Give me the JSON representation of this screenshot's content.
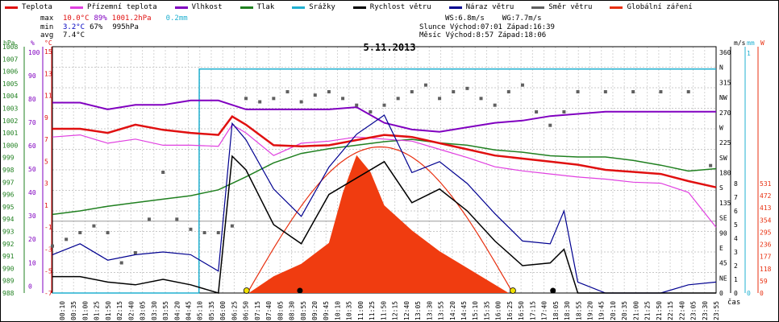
{
  "legend": [
    {
      "label": "Teplota",
      "color": "#e01010"
    },
    {
      "label": "Přízemní teplota",
      "color": "#e040e0"
    },
    {
      "label": "Vlhkost",
      "color": "#8000c0"
    },
    {
      "label": "Tlak",
      "color": "#208020"
    },
    {
      "label": "Srážky",
      "color": "#20b0d0"
    },
    {
      "label": "Rychlost větru",
      "color": "#000000"
    },
    {
      "label": "Náraz větru",
      "color": "#000090"
    },
    {
      "label": "Směr větru",
      "color": "#606060"
    },
    {
      "label": "Globální záření",
      "color": "#e83010"
    }
  ],
  "stats": {
    "max": {
      "label": "max",
      "temp": "10.0°C",
      "hum": "89%",
      "press": "1001.2hPa",
      "rain": "0.2mm"
    },
    "min": {
      "label": "min",
      "temp": "3.2°C",
      "hum": "67%",
      "press": "995hPa"
    },
    "avg": {
      "label": "avg",
      "temp": "7.4°C"
    }
  },
  "wind_stats": {
    "ws": "WS:6.8m/s",
    "wg": "WG:7.7m/s"
  },
  "sun": {
    "slunce": "Slunce Východ:07:01",
    "slunce_zapad": "Západ:16:39",
    "mesic": "Měsíc  Východ:8:57",
    "mesic_zapad": "Západ:18:06"
  },
  "chart_data": {
    "type": "line",
    "title": "5.11.2013",
    "xlabel": "čas",
    "x_ticks": [
      "00:10",
      "00:35",
      "01:00",
      "01:25",
      "01:50",
      "02:15",
      "02:40",
      "03:05",
      "03:30",
      "03:55",
      "04:20",
      "04:45",
      "05:10",
      "05:35",
      "06:00",
      "06:25",
      "06:50",
      "07:15",
      "07:40",
      "08:05",
      "08:30",
      "08:55",
      "09:20",
      "09:45",
      "10:10",
      "10:35",
      "11:00",
      "11:25",
      "11:50",
      "12:15",
      "12:40",
      "13:05",
      "13:30",
      "13:55",
      "14:20",
      "14:45",
      "15:10",
      "15:35",
      "16:00",
      "16:25",
      "16:50",
      "17:15",
      "17:40",
      "18:05",
      "18:30",
      "18:55",
      "19:20",
      "19:45",
      "20:10",
      "20:35",
      "21:00",
      "21:25",
      "21:50",
      "22:15",
      "22:40",
      "23:05",
      "23:30",
      "23:55"
    ],
    "axes": {
      "hpa": {
        "label": "hPa",
        "ticks": [
          "1008",
          "1007",
          "1006",
          "1005",
          "1004",
          "1003",
          "1002",
          "1001",
          "1000",
          "999",
          "998",
          "997",
          "996",
          "995",
          "994",
          "993",
          "992",
          "991",
          "990",
          "989",
          "988"
        ]
      },
      "pct": {
        "label": "%",
        "ticks": [
          "100",
          "90",
          "80",
          "70",
          "60",
          "50",
          "40",
          "30",
          "20",
          "10",
          "0"
        ]
      },
      "temp": {
        "label": "°C",
        "ticks": [
          "15",
          "13",
          "11",
          "9",
          "7",
          "5",
          "3",
          "1",
          "-1",
          "-3",
          "-5",
          "-7"
        ]
      },
      "dir": {
        "label": "m/s",
        "ticks": [
          "360",
          "N",
          "315",
          "NW",
          "270",
          "W",
          "225",
          "SW",
          "180",
          "S",
          "135",
          "SE",
          "90",
          "E",
          "45",
          "NE",
          "0"
        ]
      },
      "ms": {
        "ticks": [
          "8",
          "7",
          "6",
          "5",
          "4",
          "3",
          "2",
          "1",
          "0"
        ]
      },
      "mm": {
        "label": "mm",
        "ticks": [
          "1",
          "0"
        ]
      },
      "wm": {
        "label": "W",
        "ticks": [
          "531",
          "472",
          "413",
          "354",
          "295",
          "236",
          "177",
          "118",
          "59",
          "0"
        ]
      }
    },
    "series": [
      {
        "name": "Teplota",
        "unit": "°C",
        "x": [
          0,
          1,
          2,
          3,
          4,
          5,
          6,
          6.5,
          7,
          8,
          9,
          10,
          11,
          12,
          13,
          14,
          15,
          16,
          17,
          18,
          19,
          20,
          21,
          22,
          23,
          24
        ],
        "y": [
          9.0,
          9.0,
          8.6,
          9.4,
          8.9,
          8.6,
          8.4,
          10.2,
          9.4,
          7.4,
          7.3,
          7.4,
          7.9,
          8.4,
          8.2,
          7.6,
          7.0,
          6.4,
          6.1,
          5.8,
          5.5,
          5.0,
          4.8,
          4.6,
          3.9,
          3.3
        ]
      },
      {
        "name": "Přízemní teplota",
        "unit": "°C",
        "x": [
          0,
          1,
          2,
          3,
          4,
          5,
          6,
          6.5,
          7,
          8,
          9,
          10,
          11,
          12,
          13,
          14,
          15,
          16,
          17,
          18,
          19,
          20,
          21,
          22,
          23,
          24
        ],
        "y": [
          8.2,
          8.4,
          7.6,
          8.0,
          7.4,
          7.4,
          7.3,
          9.4,
          8.6,
          6.4,
          7.6,
          7.8,
          8.2,
          8.0,
          7.8,
          7.0,
          6.2,
          5.3,
          4.9,
          4.6,
          4.3,
          4.1,
          3.8,
          3.7,
          2.8,
          -0.6
        ]
      },
      {
        "name": "Vlhkost",
        "unit": "%",
        "x": [
          0,
          1,
          2,
          3,
          4,
          5,
          6,
          7,
          8,
          9,
          10,
          11,
          12,
          13,
          14,
          15,
          16,
          17,
          18,
          19,
          20,
          21,
          22,
          23,
          24
        ],
        "y": [
          85,
          85,
          82,
          84,
          84,
          86,
          86,
          82,
          82,
          82,
          82,
          83,
          76,
          73,
          72,
          74,
          76,
          77,
          79,
          80,
          81,
          81,
          81,
          81,
          81
        ]
      },
      {
        "name": "Tlak",
        "unit": "hPa",
        "x": [
          0,
          1,
          2,
          3,
          4,
          5,
          6,
          7,
          8,
          9,
          10,
          11,
          12,
          13,
          14,
          15,
          16,
          17,
          18,
          19,
          20,
          21,
          22,
          23,
          24
        ],
        "y": [
          994.7,
          995.0,
          995.4,
          995.7,
          996.0,
          996.3,
          996.8,
          997.9,
          999.1,
          999.9,
          1000.3,
          1000.6,
          1000.9,
          1001.1,
          1000.8,
          1000.6,
          1000.2,
          1000.0,
          999.7,
          999.6,
          999.6,
          999.3,
          998.9,
          998.4,
          998.6
        ]
      },
      {
        "name": "Srážky",
        "unit": "mm",
        "x": [
          0,
          5.3,
          5.31,
          24
        ],
        "y": [
          0,
          0,
          0.2,
          0.2
        ]
      },
      {
        "name": "Rychlost větru",
        "unit": "m/s",
        "x": [
          0,
          1,
          2,
          3,
          4,
          5,
          6,
          6.5,
          7,
          8,
          9,
          10,
          11,
          12,
          13,
          14,
          15,
          16,
          17,
          18,
          18.5,
          19,
          20,
          21,
          22,
          23,
          24
        ],
        "y": [
          0.6,
          0.6,
          0.4,
          0.3,
          0.5,
          0.3,
          0,
          5.0,
          4.5,
          2.5,
          1.8,
          3.6,
          4.2,
          4.8,
          3.3,
          3.8,
          3.0,
          1.9,
          1.0,
          1.1,
          1.6,
          0,
          0,
          0,
          0,
          0,
          0
        ]
      },
      {
        "name": "Náraz větru",
        "unit": "m/s",
        "x": [
          0,
          1,
          2,
          3,
          4,
          5,
          6,
          6.5,
          7,
          8,
          9,
          10,
          11,
          12,
          13,
          14,
          15,
          16,
          17,
          18,
          18.5,
          19,
          20,
          21,
          22,
          23,
          24
        ],
        "y": [
          1.4,
          1.8,
          1.2,
          1.4,
          1.5,
          1.4,
          0.8,
          6.2,
          5.6,
          3.8,
          2.8,
          4.6,
          5.8,
          6.5,
          4.4,
          4.8,
          4.0,
          2.9,
          1.9,
          1.8,
          3.0,
          0.4,
          0,
          0,
          0,
          0.3,
          0.4
        ]
      },
      {
        "name": "Globální záření",
        "unit": "W",
        "x": [
          7.1,
          8,
          9,
          10,
          10.5,
          11,
          11.5,
          12,
          13,
          14,
          15,
          16,
          16.5
        ],
        "y": [
          0,
          40,
          70,
          120,
          240,
          330,
          290,
          210,
          150,
          100,
          60,
          20,
          0
        ]
      },
      {
        "name": "Směr větru",
        "unit": "°",
        "x": [
          0,
          0.5,
          1,
          1.5,
          2,
          2.5,
          3,
          3.5,
          4,
          4.5,
          5,
          5.5,
          6,
          6.5,
          7,
          7.5,
          8,
          8.5,
          9,
          9.5,
          10,
          10.5,
          11,
          11.5,
          12,
          12.5,
          13,
          13.5,
          14,
          14.5,
          15,
          15.5,
          16,
          16.5,
          17,
          17.5,
          18,
          18.5,
          19,
          20,
          21,
          22,
          23,
          23.8
        ],
        "y": [
          70,
          80,
          90,
          100,
          90,
          45,
          60,
          110,
          180,
          110,
          95,
          90,
          90,
          100,
          290,
          285,
          290,
          300,
          285,
          295,
          300,
          290,
          280,
          270,
          280,
          290,
          300,
          310,
          290,
          300,
          305,
          290,
          280,
          300,
          310,
          270,
          250,
          270,
          300,
          300,
          300,
          300,
          300,
          190
        ]
      }
    ]
  }
}
